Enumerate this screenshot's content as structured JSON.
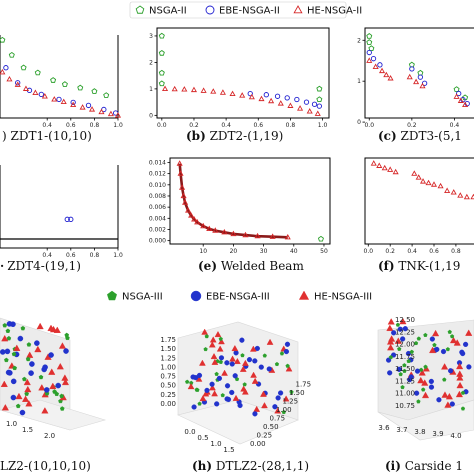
{
  "legend_top": {
    "items": [
      {
        "label": "NSGA-II",
        "marker": "pentagon-open",
        "color": "#2ca02c"
      },
      {
        "label": "EBE-NSGA-II",
        "marker": "circle-open",
        "color": "#1f1fd0"
      },
      {
        "label": "HE-NSGA-II",
        "marker": "triangle-open",
        "color": "#d62728"
      }
    ]
  },
  "legend_bottom": {
    "items": [
      {
        "label": "NSGA-III",
        "marker": "pentagon-filled",
        "color": "#2ca02c"
      },
      {
        "label": "EBE-NSGA-III",
        "marker": "circle-filled",
        "color": "#2233cc"
      },
      {
        "label": "HE-NSGA-III",
        "marker": "triangle-filled",
        "color": "#e03030"
      }
    ]
  },
  "captions": {
    "a": ") ZDT1-(10,10)",
    "b_letter": "(b)",
    "b_text": " ZDT2-(1,19)",
    "c_letter": "(c)",
    "c_text": " ZDT3-(5,1",
    "d": "ZDT4-(19,1)",
    "e_letter": "(e)",
    "e_text": " Welded Beam",
    "f_letter": "(f)",
    "f_text": " TNK-(1,19",
    "g": "LZ2-(10,10,10)",
    "h_letter": "(h)",
    "h_text": " DTLZ2-(28,1,1)",
    "i_letter": "(i)",
    "i_text": " Carside 1"
  },
  "chart_data": [
    {
      "id": "zdt1",
      "type": "scatter",
      "title": "ZDT1-(10,10)",
      "xlim": [
        0,
        1.0
      ],
      "xticks": [
        "0.4",
        "0.6",
        "0.8",
        "1.0"
      ],
      "series": [
        {
          "name": "NSGA-II",
          "points": [
            [
              0.02,
              1.5
            ],
            [
              0.1,
              1.2
            ],
            [
              0.2,
              0.95
            ],
            [
              0.32,
              0.85
            ],
            [
              0.45,
              0.7
            ],
            [
              0.55,
              0.62
            ],
            [
              0.68,
              0.55
            ],
            [
              0.8,
              0.48
            ],
            [
              0.9,
              0.4
            ]
          ]
        },
        {
          "name": "EBE-NSGA-II",
          "points": [
            [
              0.05,
              0.95
            ],
            [
              0.15,
              0.65
            ],
            [
              0.25,
              0.5
            ],
            [
              0.35,
              0.42
            ],
            [
              0.5,
              0.32
            ],
            [
              0.62,
              0.26
            ],
            [
              0.75,
              0.2
            ],
            [
              0.88,
              0.12
            ],
            [
              0.98,
              0.05
            ]
          ]
        },
        {
          "name": "HE-NSGA-II",
          "points": [
            [
              0.02,
              0.86
            ],
            [
              0.08,
              0.72
            ],
            [
              0.15,
              0.61
            ],
            [
              0.22,
              0.53
            ],
            [
              0.3,
              0.45
            ],
            [
              0.38,
              0.38
            ],
            [
              0.46,
              0.32
            ],
            [
              0.54,
              0.27
            ],
            [
              0.62,
              0.21
            ],
            [
              0.7,
              0.16
            ],
            [
              0.78,
              0.12
            ],
            [
              0.86,
              0.07
            ],
            [
              0.94,
              0.03
            ],
            [
              1.0,
              0.0
            ]
          ]
        }
      ]
    },
    {
      "id": "zdt2",
      "type": "scatter",
      "title": "ZDT2-(1,19)",
      "xlim": [
        0,
        1.0
      ],
      "ylim": [
        0,
        3.2
      ],
      "xticks": [
        "0.0",
        "0.2",
        "0.4",
        "0.6",
        "0.8",
        "1.0"
      ],
      "yticks": [
        "0",
        "1",
        "2",
        "3"
      ],
      "series": [
        {
          "name": "NSGA-II",
          "points": [
            [
              0.0,
              3.0
            ],
            [
              0.0,
              2.35
            ],
            [
              0.0,
              1.6
            ],
            [
              0.0,
              1.2
            ],
            [
              0.98,
              0.6
            ],
            [
              0.98,
              1.0
            ]
          ]
        },
        {
          "name": "EBE-NSGA-II",
          "points": [
            [
              0.55,
              0.82
            ],
            [
              0.65,
              0.78
            ],
            [
              0.72,
              0.72
            ],
            [
              0.78,
              0.66
            ],
            [
              0.84,
              0.6
            ],
            [
              0.9,
              0.5
            ],
            [
              0.95,
              0.42
            ],
            [
              0.98,
              0.35
            ]
          ]
        },
        {
          "name": "HE-NSGA-II",
          "points": [
            [
              0.02,
              1.0
            ],
            [
              0.08,
              0.99
            ],
            [
              0.14,
              0.98
            ],
            [
              0.2,
              0.96
            ],
            [
              0.26,
              0.93
            ],
            [
              0.32,
              0.9
            ],
            [
              0.38,
              0.86
            ],
            [
              0.44,
              0.81
            ],
            [
              0.5,
              0.75
            ],
            [
              0.56,
              0.69
            ],
            [
              0.62,
              0.62
            ],
            [
              0.68,
              0.54
            ],
            [
              0.74,
              0.45
            ],
            [
              0.8,
              0.36
            ],
            [
              0.86,
              0.26
            ],
            [
              0.92,
              0.15
            ],
            [
              0.97,
              0.06
            ]
          ]
        }
      ]
    },
    {
      "id": "zdt3",
      "type": "scatter",
      "title": "ZDT3-(5,1",
      "xlim": [
        0,
        0.5
      ],
      "ylim": [
        0,
        2.2
      ],
      "xticks": [
        "0.0",
        "0.2",
        "0.4"
      ],
      "yticks": [
        "0",
        "1",
        "2"
      ],
      "series": [
        {
          "name": "NSGA-II",
          "points": [
            [
              0.0,
              2.1
            ],
            [
              0.0,
              1.95
            ],
            [
              0.01,
              1.8
            ],
            [
              0.2,
              1.4
            ],
            [
              0.24,
              1.2
            ],
            [
              0.41,
              0.8
            ],
            [
              0.45,
              0.6
            ]
          ]
        },
        {
          "name": "EBE-NSGA-II",
          "points": [
            [
              0.0,
              1.7
            ],
            [
              0.02,
              1.55
            ],
            [
              0.05,
              1.4
            ],
            [
              0.2,
              1.3
            ],
            [
              0.24,
              1.1
            ],
            [
              0.26,
              0.95
            ],
            [
              0.42,
              0.7
            ],
            [
              0.44,
              0.55
            ],
            [
              0.46,
              0.45
            ]
          ]
        },
        {
          "name": "HE-NSGA-II",
          "points": [
            [
              0.0,
              1.5
            ],
            [
              0.03,
              1.35
            ],
            [
              0.06,
              1.25
            ],
            [
              0.08,
              1.15
            ],
            [
              0.1,
              1.07
            ],
            [
              0.19,
              1.1
            ],
            [
              0.22,
              0.98
            ],
            [
              0.25,
              0.88
            ],
            [
              0.41,
              0.62
            ],
            [
              0.43,
              0.52
            ],
            [
              0.45,
              0.42
            ]
          ]
        }
      ]
    },
    {
      "id": "zdt4",
      "type": "scatter",
      "title": "ZDT4-(19,1)",
      "xlim": [
        0,
        1.0
      ],
      "xticks": [
        "0.4",
        "0.6",
        "0.8",
        "1.0"
      ],
      "series": [
        {
          "name": "EBE-NSGA-II",
          "points": [
            [
              0.57,
              0.28
            ],
            [
              0.6,
              0.28
            ]
          ]
        },
        {
          "name": "HE-NSGA-II",
          "points": [
            [
              0.0,
              0.0
            ],
            [
              1.0,
              0.0
            ]
          ]
        }
      ]
    },
    {
      "id": "welded",
      "type": "scatter",
      "title": "Welded Beam",
      "xlim": [
        0,
        50
      ],
      "ylim": [
        0,
        0.014
      ],
      "xticks": [
        "10",
        "20",
        "30",
        "40",
        "50"
      ],
      "yticks": [
        "0.000",
        "0.002",
        "0.004",
        "0.006",
        "0.008",
        "0.010",
        "0.012",
        "0.014"
      ],
      "series": [
        {
          "name": "NSGA-II",
          "points": [
            [
              49,
              0.0003
            ]
          ]
        },
        {
          "name": "HE-NSGA-II",
          "points": [
            [
              2.2,
              0.0138
            ],
            [
              2.5,
              0.012
            ],
            [
              3,
              0.0095
            ],
            [
              3.5,
              0.008
            ],
            [
              4,
              0.0068
            ],
            [
              5,
              0.0054
            ],
            [
              6,
              0.0045
            ],
            [
              7,
              0.0038
            ],
            [
              8,
              0.0033
            ],
            [
              10,
              0.0026
            ],
            [
              12,
              0.0021
            ],
            [
              14,
              0.0018
            ],
            [
              17,
              0.0015
            ],
            [
              20,
              0.0012
            ],
            [
              24,
              0.001
            ],
            [
              28,
              0.0008
            ],
            [
              33,
              0.0007
            ],
            [
              38,
              0.0006
            ]
          ]
        }
      ]
    },
    {
      "id": "tnk",
      "type": "scatter",
      "title": "TNK-(1,19",
      "xlim": [
        0,
        1.05
      ],
      "ylim": [
        0,
        1.05
      ],
      "xticks": [
        "0.0",
        "0.2",
        "0.4",
        "0.6",
        "0.8"
      ],
      "series": [
        {
          "name": "HE-NSGA-II",
          "points": [
            [
              0.05,
              1.03
            ],
            [
              0.1,
              1.0
            ],
            [
              0.15,
              0.97
            ],
            [
              0.2,
              0.95
            ],
            [
              0.25,
              0.92
            ],
            [
              0.42,
              0.9
            ],
            [
              0.46,
              0.85
            ],
            [
              0.5,
              0.8
            ],
            [
              0.55,
              0.78
            ],
            [
              0.6,
              0.76
            ],
            [
              0.66,
              0.74
            ],
            [
              0.72,
              0.68
            ],
            [
              0.78,
              0.66
            ],
            [
              0.84,
              0.62
            ],
            [
              0.9,
              0.6
            ],
            [
              0.96,
              0.6
            ],
            [
              1.02,
              0.6
            ]
          ]
        }
      ]
    },
    {
      "id": "dtlz2-a",
      "type": "scatter3d",
      "title": "DTLZ2-(10,10,10)",
      "ticks": [
        "1.0",
        "1.5",
        "2.0"
      ]
    },
    {
      "id": "dtlz2-b",
      "type": "scatter3d",
      "title": "DTLZ2-(28,1,1)",
      "zticks": [
        "0.00",
        "0.25",
        "0.50",
        "0.75",
        "1.00",
        "1.25",
        "1.50",
        "1.75"
      ],
      "xticks": [
        "0.0",
        "0.5",
        "1.0",
        "1.5"
      ],
      "yticks": [
        "0.00",
        "0.25",
        "0.50",
        "0.75",
        "1.00",
        "1.25",
        "1.50",
        "1.75"
      ]
    },
    {
      "id": "carside",
      "type": "scatter3d",
      "title": "Carside 1",
      "zticks": [
        "10.75",
        "11.00",
        "11.25",
        "11.50",
        "11.75",
        "12.00",
        "12.25",
        "12.50"
      ],
      "xticks": [
        "3.6",
        "3.7",
        "3.8",
        "3.9",
        "4.0"
      ]
    }
  ]
}
